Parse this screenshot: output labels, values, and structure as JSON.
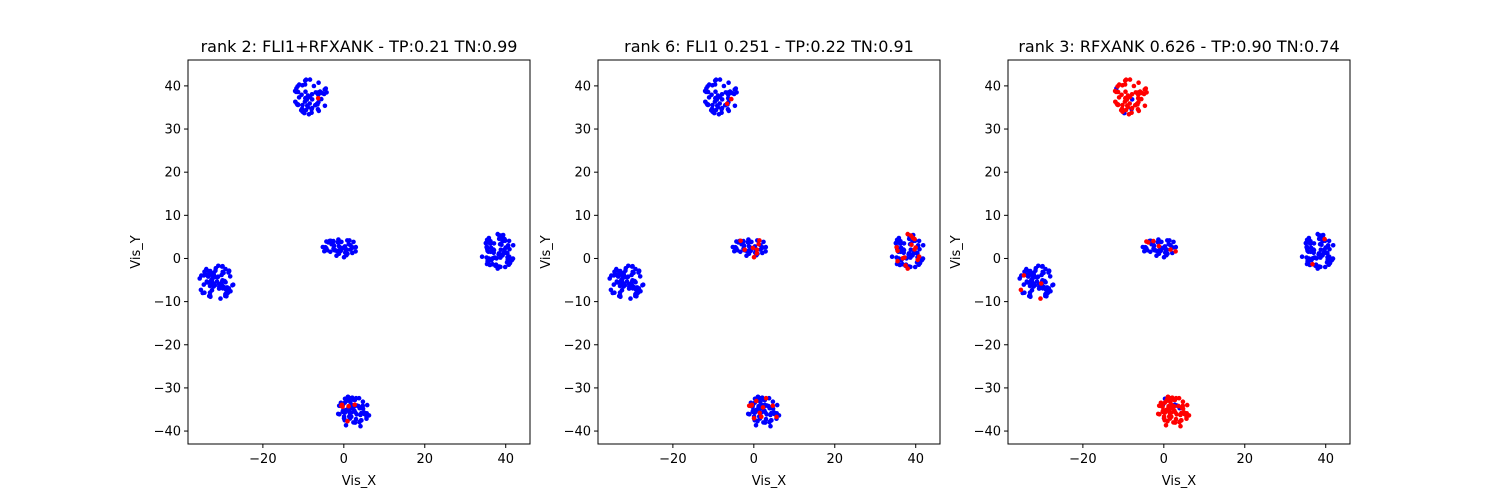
{
  "chart_data": [
    {
      "type": "scatter",
      "title": "rank 2: FLI1+RFXANK - TP:0.21 TN:0.99",
      "xlabel": "Vis_X",
      "ylabel": "Vis_Y",
      "xlim": [
        -38.5,
        46
      ],
      "ylim": [
        -43,
        46
      ],
      "xticks": [
        -20,
        0,
        20,
        40
      ],
      "yticks": [
        -40,
        -30,
        -20,
        -10,
        0,
        10,
        20,
        30,
        40
      ],
      "grid": false,
      "colors": {
        "negative": "#0000ff",
        "positive": "#ff0000"
      },
      "clusters": [
        {
          "cx": -8,
          "cy": 37.5,
          "rx": 4.3,
          "ry": 4.2,
          "n": 60,
          "red_frac": 0.04
        },
        {
          "cx": -31.5,
          "cy": -5.5,
          "rx": 4.3,
          "ry": 4.0,
          "n": 80,
          "red_frac": 0.0
        },
        {
          "cx": -1,
          "cy": 2.5,
          "rx": 4.3,
          "ry": 2.3,
          "n": 50,
          "red_frac": 0.0
        },
        {
          "cx": 38,
          "cy": 1.5,
          "rx": 4.3,
          "ry": 4.2,
          "n": 80,
          "red_frac": 0.0
        },
        {
          "cx": 2.5,
          "cy": -35.5,
          "rx": 4.0,
          "ry": 3.7,
          "n": 75,
          "red_frac": 0.1
        }
      ]
    },
    {
      "type": "scatter",
      "title": "rank 6: FLI1 0.251 - TP:0.22 TN:0.91",
      "xlabel": "Vis_X",
      "ylabel": "Vis_Y",
      "xlim": [
        -38.5,
        46
      ],
      "ylim": [
        -43,
        46
      ],
      "xticks": [
        -20,
        0,
        20,
        40
      ],
      "yticks": [
        -40,
        -30,
        -20,
        -10,
        0,
        10,
        20,
        30,
        40
      ],
      "grid": false,
      "colors": {
        "negative": "#0000ff",
        "positive": "#ff0000"
      },
      "clusters": [
        {
          "cx": -8,
          "cy": 37.5,
          "rx": 4.3,
          "ry": 4.2,
          "n": 60,
          "red_frac": 0.04
        },
        {
          "cx": -31.5,
          "cy": -5.5,
          "rx": 4.3,
          "ry": 4.0,
          "n": 80,
          "red_frac": 0.0
        },
        {
          "cx": -1,
          "cy": 2.5,
          "rx": 4.3,
          "ry": 2.3,
          "n": 50,
          "red_frac": 0.25
        },
        {
          "cx": 38,
          "cy": 1.5,
          "rx": 4.3,
          "ry": 4.2,
          "n": 80,
          "red_frac": 0.17
        },
        {
          "cx": 2.5,
          "cy": -35.5,
          "rx": 4.0,
          "ry": 3.7,
          "n": 75,
          "red_frac": 0.08
        }
      ]
    },
    {
      "type": "scatter",
      "title": "rank 3: RFXANK 0.626 - TP:0.90 TN:0.74",
      "xlabel": "Vis_X",
      "ylabel": "Vis_Y",
      "xlim": [
        -38.5,
        46
      ],
      "ylim": [
        -43,
        46
      ],
      "xticks": [
        -20,
        0,
        20,
        40
      ],
      "yticks": [
        -40,
        -30,
        -20,
        -10,
        0,
        10,
        20,
        30,
        40
      ],
      "grid": false,
      "colors": {
        "negative": "#0000ff",
        "positive": "#ff0000"
      },
      "clusters": [
        {
          "cx": -8,
          "cy": 37.5,
          "rx": 4.3,
          "ry": 4.2,
          "n": 60,
          "red_frac": 0.9
        },
        {
          "cx": -31.5,
          "cy": -5.5,
          "rx": 4.3,
          "ry": 4.0,
          "n": 80,
          "red_frac": 0.02
        },
        {
          "cx": -1,
          "cy": 2.5,
          "rx": 4.3,
          "ry": 2.3,
          "n": 50,
          "red_frac": 0.05
        },
        {
          "cx": 38,
          "cy": 1.5,
          "rx": 4.3,
          "ry": 4.2,
          "n": 80,
          "red_frac": 0.02
        },
        {
          "cx": 2.5,
          "cy": -35.5,
          "rx": 4.0,
          "ry": 3.7,
          "n": 75,
          "red_frac": 0.92
        }
      ]
    }
  ]
}
